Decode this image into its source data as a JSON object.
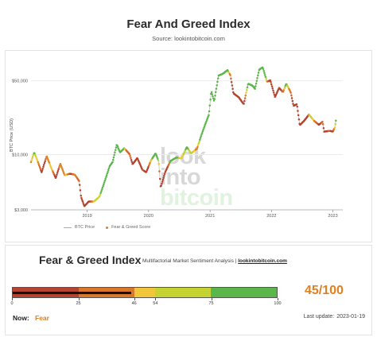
{
  "header": {
    "title": "Fear And Greed Index",
    "source": "Source: lookintobitcoin.com"
  },
  "chart_data": {
    "type": "scatter",
    "title": "Fear And Greed Index",
    "ylabel": "BTC Price (USD)",
    "xlabel": "",
    "yscale": "log",
    "ylim": [
      3000,
      78000
    ],
    "xlim": [
      "2018-02-01",
      "2023-03-01"
    ],
    "y_ticks": [
      {
        "value": 3000,
        "label": "$3,000"
      },
      {
        "value": 10000,
        "label": "$10,000"
      },
      {
        "value": 50000,
        "label": "$50,000"
      }
    ],
    "x_ticks": [
      {
        "date": "2019-01-01",
        "label": "2019"
      },
      {
        "date": "2020-01-01",
        "label": "2020"
      },
      {
        "date": "2021-01-01",
        "label": "2021"
      },
      {
        "date": "2022-01-01",
        "label": "2022"
      },
      {
        "date": "2023-01-01",
        "label": "2023"
      }
    ],
    "grid": "horizontal",
    "series": [
      {
        "name": "BTC Price",
        "color": "#aaaaaa",
        "points": [
          [
            "2018-02-01",
            8500
          ],
          [
            "2018-02-20",
            10500
          ],
          [
            "2018-03-10",
            8900
          ],
          [
            "2018-04-05",
            6800
          ],
          [
            "2018-05-05",
            9700
          ],
          [
            "2018-06-01",
            7500
          ],
          [
            "2018-06-28",
            6000
          ],
          [
            "2018-07-25",
            8200
          ],
          [
            "2018-08-20",
            6400
          ],
          [
            "2018-09-20",
            6600
          ],
          [
            "2018-10-20",
            6450
          ],
          [
            "2018-11-15",
            5600
          ],
          [
            "2018-11-25",
            4000
          ],
          [
            "2018-12-15",
            3250
          ],
          [
            "2019-01-10",
            3600
          ],
          [
            "2019-02-10",
            3600
          ],
          [
            "2019-03-15",
            4000
          ],
          [
            "2019-04-05",
            5000
          ],
          [
            "2019-05-15",
            7800
          ],
          [
            "2019-06-01",
            8500
          ],
          [
            "2019-06-26",
            12500
          ],
          [
            "2019-07-15",
            10500
          ],
          [
            "2019-08-10",
            11500
          ],
          [
            "2019-09-10",
            10100
          ],
          [
            "2019-09-28",
            8100
          ],
          [
            "2019-10-26",
            9300
          ],
          [
            "2019-11-25",
            7200
          ],
          [
            "2019-12-18",
            6800
          ],
          [
            "2020-01-15",
            8800
          ],
          [
            "2020-02-12",
            10300
          ],
          [
            "2020-03-01",
            8600
          ],
          [
            "2020-03-13",
            4900
          ],
          [
            "2020-04-10",
            6900
          ],
          [
            "2020-05-10",
            8700
          ],
          [
            "2020-06-15",
            9400
          ],
          [
            "2020-07-15",
            9200
          ],
          [
            "2020-08-15",
            11800
          ],
          [
            "2020-09-10",
            10300
          ],
          [
            "2020-10-15",
            11400
          ],
          [
            "2020-11-10",
            15300
          ],
          [
            "2020-12-01",
            19000
          ],
          [
            "2020-12-25",
            24000
          ],
          [
            "2021-01-08",
            40000
          ],
          [
            "2021-01-25",
            32000
          ],
          [
            "2021-02-20",
            56000
          ],
          [
            "2021-03-15",
            58000
          ],
          [
            "2021-04-14",
            63000
          ],
          [
            "2021-05-01",
            57000
          ],
          [
            "2021-05-20",
            38000
          ],
          [
            "2021-06-20",
            35000
          ],
          [
            "2021-07-20",
            30000
          ],
          [
            "2021-08-15",
            47000
          ],
          [
            "2021-09-10",
            45000
          ],
          [
            "2021-09-25",
            42000
          ],
          [
            "2021-10-20",
            64000
          ],
          [
            "2021-11-10",
            67000
          ],
          [
            "2021-12-05",
            49000
          ],
          [
            "2021-12-25",
            50500
          ],
          [
            "2022-01-22",
            35000
          ],
          [
            "2022-02-15",
            43000
          ],
          [
            "2022-03-10",
            39000
          ],
          [
            "2022-03-30",
            47000
          ],
          [
            "2022-04-25",
            39000
          ],
          [
            "2022-05-12",
            29000
          ],
          [
            "2022-06-01",
            30000
          ],
          [
            "2022-06-18",
            19000
          ],
          [
            "2022-07-15",
            21000
          ],
          [
            "2022-08-12",
            24000
          ],
          [
            "2022-09-10",
            21000
          ],
          [
            "2022-10-10",
            19200
          ],
          [
            "2022-11-01",
            20500
          ],
          [
            "2022-11-10",
            16500
          ],
          [
            "2022-12-15",
            16800
          ],
          [
            "2022-12-31",
            16500
          ],
          [
            "2023-01-12",
            18000
          ],
          [
            "2023-01-19",
            21000
          ]
        ]
      },
      {
        "name": "Fear & Greed Score",
        "color": "#e0801f"
      }
    ]
  },
  "watermark": {
    "line1": "look",
    "line2": "into",
    "line3": "bitcoin"
  },
  "legend": {
    "price": "BTC Price",
    "score": "Fear & Greed Score"
  },
  "gauge": {
    "title": "Fear & Greed Index",
    "subtitle": "Multifactorial Market Sentiment Analysis |",
    "link": "lookintobitcoin.com",
    "value": 45,
    "value_text": "45/100",
    "ticks": [
      0,
      25,
      46,
      54,
      75,
      100
    ],
    "segment_colors": [
      "#b4432f",
      "#d9782b",
      "#f2c63a",
      "#c4d232",
      "#5ab64a"
    ],
    "segment_bounds": [
      0,
      25,
      46,
      54,
      75,
      100
    ],
    "now_label": "Now:",
    "now_value": "Fear",
    "last_update_label": "Last update:",
    "last_update_value": "2023-01-19"
  },
  "colors": {
    "accent": "#e0801f"
  }
}
